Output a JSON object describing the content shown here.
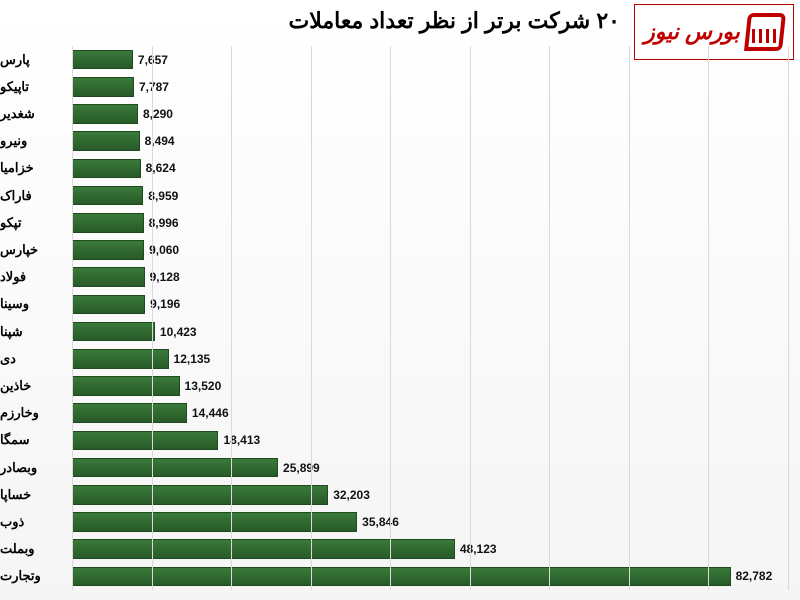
{
  "title": "۲۰ شرکت برتر از نظر تعداد معاملات",
  "logo_text": "بورس نیوز",
  "chart": {
    "type": "bar-horizontal",
    "background_color": "#ffffff",
    "grid_color": "#d9d9d9",
    "bar_fill_top": "#3a7a3a",
    "bar_fill_bottom": "#285a28",
    "bar_border": "#1f4a1f",
    "label_color": "#111111",
    "label_fontsize": 12,
    "ylabel_fontsize": 13,
    "title_fontsize": 22,
    "xmin": 0,
    "xmax": 90000,
    "xtick_step": 10000,
    "items": [
      {
        "name": "پارس",
        "value": 7657,
        "value_label": "7,657"
      },
      {
        "name": "تاپیکو",
        "value": 7787,
        "value_label": "7,787"
      },
      {
        "name": "شغدیر",
        "value": 8290,
        "value_label": "8,290"
      },
      {
        "name": "ونیرو",
        "value": 8494,
        "value_label": "8,494"
      },
      {
        "name": "خزامیا",
        "value": 8624,
        "value_label": "8,624"
      },
      {
        "name": "فاراک",
        "value": 8959,
        "value_label": "8,959"
      },
      {
        "name": "تپکو",
        "value": 8996,
        "value_label": "8,996"
      },
      {
        "name": "خپارس",
        "value": 9060,
        "value_label": "9,060"
      },
      {
        "name": "فولاد",
        "value": 9128,
        "value_label": "9,128"
      },
      {
        "name": "وسینا",
        "value": 9196,
        "value_label": "9,196"
      },
      {
        "name": "شپنا",
        "value": 10423,
        "value_label": "10,423"
      },
      {
        "name": "دی",
        "value": 12135,
        "value_label": "12,135"
      },
      {
        "name": "خاذین",
        "value": 13520,
        "value_label": "13,520"
      },
      {
        "name": "وخارزم",
        "value": 14446,
        "value_label": "14,446"
      },
      {
        "name": "سمگا",
        "value": 18413,
        "value_label": "18,413"
      },
      {
        "name": "وبصادر",
        "value": 25899,
        "value_label": "25,899"
      },
      {
        "name": "خساپا",
        "value": 32203,
        "value_label": "32,203"
      },
      {
        "name": "ذوب",
        "value": 35846,
        "value_label": "35,846"
      },
      {
        "name": "وبملت",
        "value": 48123,
        "value_label": "48,123"
      },
      {
        "name": "وتجارت",
        "value": 82782,
        "value_label": "82,782"
      }
    ]
  }
}
